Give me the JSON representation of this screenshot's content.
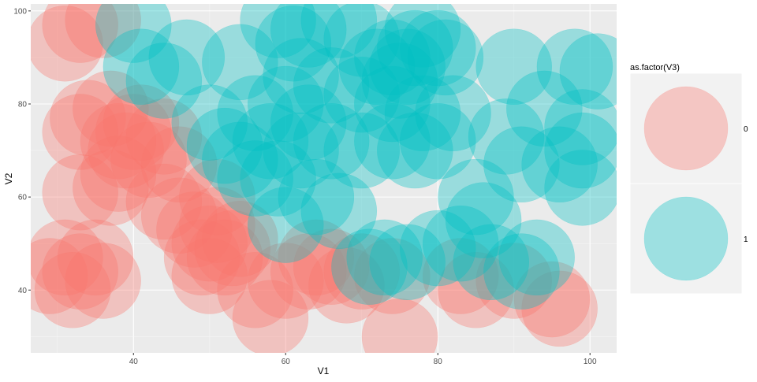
{
  "chart_data": {
    "type": "scatter",
    "title": "",
    "xlabel": "V1",
    "ylabel": "V2",
    "xlim": [
      26.5,
      103.5
    ],
    "ylim": [
      26.5,
      101.5
    ],
    "xticks": [
      40,
      60,
      80,
      100
    ],
    "yticks": [
      40,
      60,
      80,
      100
    ],
    "grid": true,
    "legend": {
      "title": "as.factor(V3)",
      "position": "right",
      "entries": [
        {
          "label": "0",
          "color": "#F8766D"
        },
        {
          "label": "1",
          "color": "#00BFC4"
        }
      ]
    },
    "marker_opacity": 0.35,
    "series": [
      {
        "name": "0",
        "color": "#F8766D",
        "points": [
          {
            "x": 33,
            "y": 97
          },
          {
            "x": 36,
            "y": 98
          },
          {
            "x": 31,
            "y": 93
          },
          {
            "x": 34,
            "y": 77
          },
          {
            "x": 37,
            "y": 79
          },
          {
            "x": 33,
            "y": 74
          },
          {
            "x": 38,
            "y": 72
          },
          {
            "x": 40,
            "y": 74
          },
          {
            "x": 41,
            "y": 76
          },
          {
            "x": 39,
            "y": 70
          },
          {
            "x": 42,
            "y": 68
          },
          {
            "x": 38,
            "y": 65
          },
          {
            "x": 44,
            "y": 73
          },
          {
            "x": 46,
            "y": 67
          },
          {
            "x": 33,
            "y": 61
          },
          {
            "x": 37,
            "y": 62
          },
          {
            "x": 44,
            "y": 59
          },
          {
            "x": 46,
            "y": 56
          },
          {
            "x": 48,
            "y": 53
          },
          {
            "x": 50,
            "y": 50
          },
          {
            "x": 51,
            "y": 54
          },
          {
            "x": 52,
            "y": 47
          },
          {
            "x": 53,
            "y": 49
          },
          {
            "x": 49,
            "y": 47
          },
          {
            "x": 54,
            "y": 51
          },
          {
            "x": 51,
            "y": 60
          },
          {
            "x": 50,
            "y": 43
          },
          {
            "x": 31,
            "y": 47
          },
          {
            "x": 29,
            "y": 43
          },
          {
            "x": 33,
            "y": 44
          },
          {
            "x": 35,
            "y": 47
          },
          {
            "x": 36,
            "y": 42
          },
          {
            "x": 32,
            "y": 40
          },
          {
            "x": 56,
            "y": 40
          },
          {
            "x": 58,
            "y": 34
          },
          {
            "x": 60,
            "y": 42
          },
          {
            "x": 64,
            "y": 47
          },
          {
            "x": 66,
            "y": 45
          },
          {
            "x": 68,
            "y": 41
          },
          {
            "x": 70,
            "y": 44
          },
          {
            "x": 63,
            "y": 44
          },
          {
            "x": 74,
            "y": 43
          },
          {
            "x": 75,
            "y": 30
          },
          {
            "x": 83,
            "y": 43
          },
          {
            "x": 85,
            "y": 40
          },
          {
            "x": 90,
            "y": 42
          },
          {
            "x": 95,
            "y": 38
          },
          {
            "x": 96,
            "y": 36
          }
        ]
      },
      {
        "name": "1",
        "color": "#00BFC4",
        "points": [
          {
            "x": 40,
            "y": 97
          },
          {
            "x": 41,
            "y": 88
          },
          {
            "x": 44,
            "y": 85
          },
          {
            "x": 47,
            "y": 90
          },
          {
            "x": 54,
            "y": 89
          },
          {
            "x": 59,
            "y": 98
          },
          {
            "x": 61,
            "y": 93
          },
          {
            "x": 63,
            "y": 96
          },
          {
            "x": 67,
            "y": 98
          },
          {
            "x": 70,
            "y": 94
          },
          {
            "x": 74,
            "y": 90
          },
          {
            "x": 76,
            "y": 88
          },
          {
            "x": 78,
            "y": 96
          },
          {
            "x": 80,
            "y": 92
          },
          {
            "x": 77,
            "y": 92
          },
          {
            "x": 81,
            "y": 90
          },
          {
            "x": 72,
            "y": 88
          },
          {
            "x": 62,
            "y": 86
          },
          {
            "x": 66,
            "y": 84
          },
          {
            "x": 70,
            "y": 82
          },
          {
            "x": 74,
            "y": 80
          },
          {
            "x": 78,
            "y": 78
          },
          {
            "x": 82,
            "y": 78
          },
          {
            "x": 75,
            "y": 85
          },
          {
            "x": 56,
            "y": 78
          },
          {
            "x": 60,
            "y": 80
          },
          {
            "x": 63,
            "y": 76
          },
          {
            "x": 58,
            "y": 72
          },
          {
            "x": 62,
            "y": 70
          },
          {
            "x": 66,
            "y": 72
          },
          {
            "x": 70,
            "y": 70
          },
          {
            "x": 74,
            "y": 72
          },
          {
            "x": 77,
            "y": 70
          },
          {
            "x": 80,
            "y": 72
          },
          {
            "x": 50,
            "y": 76
          },
          {
            "x": 52,
            "y": 71
          },
          {
            "x": 54,
            "y": 68
          },
          {
            "x": 56,
            "y": 64
          },
          {
            "x": 59,
            "y": 64
          },
          {
            "x": 64,
            "y": 60
          },
          {
            "x": 67,
            "y": 57
          },
          {
            "x": 60,
            "y": 54
          },
          {
            "x": 90,
            "y": 88
          },
          {
            "x": 98,
            "y": 88
          },
          {
            "x": 101,
            "y": 87
          },
          {
            "x": 94,
            "y": 79
          },
          {
            "x": 99,
            "y": 75
          },
          {
            "x": 89,
            "y": 73
          },
          {
            "x": 91,
            "y": 67
          },
          {
            "x": 96,
            "y": 67
          },
          {
            "x": 99,
            "y": 70
          },
          {
            "x": 99,
            "y": 62
          },
          {
            "x": 85,
            "y": 60
          },
          {
            "x": 86,
            "y": 55
          },
          {
            "x": 83,
            "y": 50
          },
          {
            "x": 80,
            "y": 49
          },
          {
            "x": 76,
            "y": 46
          },
          {
            "x": 73,
            "y": 47
          },
          {
            "x": 71,
            "y": 45
          },
          {
            "x": 87,
            "y": 46
          },
          {
            "x": 91,
            "y": 44
          },
          {
            "x": 93,
            "y": 47
          }
        ]
      }
    ]
  }
}
